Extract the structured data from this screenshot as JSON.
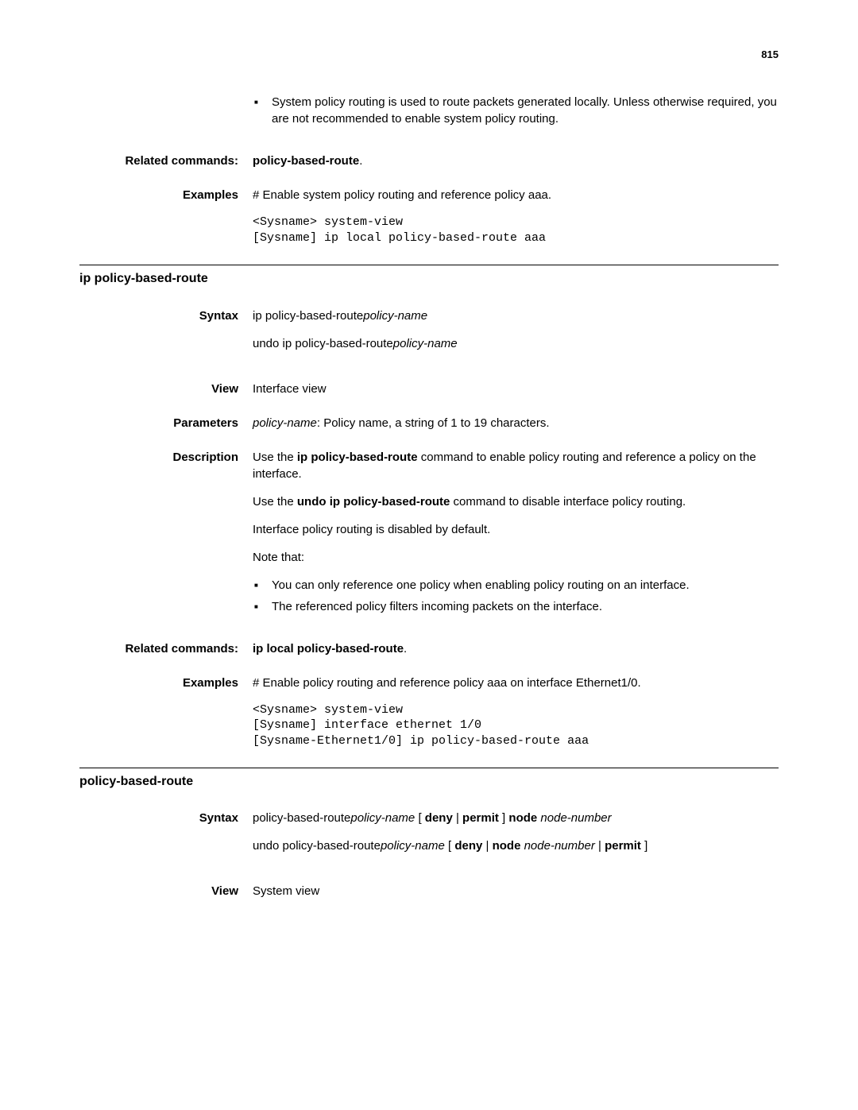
{
  "page_number": "815",
  "intro_bullets": [
    "System policy routing is used to route packets generated locally. Unless otherwise required, you are not recommended to enable system policy routing."
  ],
  "related1": {
    "label": "Related commands:",
    "value": "policy-based-route"
  },
  "examples1": {
    "label": "Examples",
    "text": "# Enable system policy routing and reference policy aaa.",
    "code": "<Sysname> system-view\n[Sysname] ip local policy-based-route aaa"
  },
  "section1": {
    "title": "ip policy-based-route",
    "syntax_label": "Syntax",
    "syntax_line1_a": "ip policy-based-route",
    "syntax_line1_b": "policy-name",
    "syntax_line2_a": "undo ip policy-based-route",
    "syntax_line2_b": "policy-name",
    "view_label": "View",
    "view_text": "Interface view",
    "params_label": "Parameters",
    "params_italic": "policy-name",
    "params_text": ": Policy name, a string of 1 to 19 characters.",
    "desc_label": "Description",
    "desc_p1_a": "Use the ",
    "desc_p1_b": "ip policy-based-route",
    "desc_p1_c": " command to enable policy routing and reference a policy on the interface.",
    "desc_p2_a": "Use the ",
    "desc_p2_b": "undo ip policy-based-route",
    "desc_p2_c": " command to disable interface policy routing.",
    "desc_p3": "Interface policy routing is disabled by default.",
    "desc_p4": "Note that:",
    "desc_bullets": [
      "You can only reference one policy when enabling policy routing on an interface.",
      "The referenced policy filters incoming packets on the interface."
    ],
    "related_label": "Related commands:",
    "related_value": "ip local policy-based-route",
    "examples_label": "Examples",
    "examples_text": "# Enable policy routing and reference policy aaa on interface Ethernet1/0.",
    "examples_code": "<Sysname> system-view\n[Sysname] interface ethernet 1/0\n[Sysname-Ethernet1/0] ip policy-based-route aaa"
  },
  "section2": {
    "title": "policy-based-route",
    "syntax_label": "Syntax",
    "s1_a": "policy-based-route",
    "s1_b": "policy-name",
    "s1_c": " [ ",
    "s1_d": "deny",
    "s1_e": " | ",
    "s1_f": "permit",
    "s1_g": " ] ",
    "s1_h": "node",
    "s1_i": "node-number",
    "s2_a": "undo policy-based-route",
    "s2_b": "policy-name",
    "s2_c": " [ ",
    "s2_d": "deny",
    "s2_e": " | ",
    "s2_f": "node",
    "s2_g": "node-number",
    "s2_h": " | ",
    "s2_i": "permit",
    "s2_j": " ]",
    "view_label": "View",
    "view_text": "System view"
  }
}
